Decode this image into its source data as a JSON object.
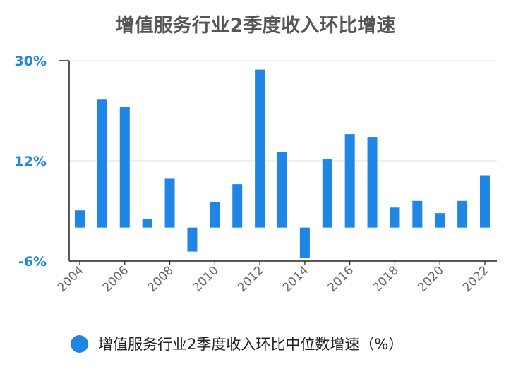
{
  "chart_data": {
    "type": "bar",
    "title": "增值服务行业2季度收入环比增速",
    "xlabel": "",
    "ylabel": "",
    "ylim": [
      -6,
      30
    ],
    "y_ticks": [
      {
        "label": "30%",
        "value": 30
      },
      {
        "label": "12%",
        "value": 12
      },
      {
        "label": "-6%",
        "value": -6
      }
    ],
    "categories": [
      "2004",
      "2005",
      "2006",
      "2007",
      "2008",
      "2009",
      "2010",
      "2011",
      "2012",
      "2013",
      "2014",
      "2015",
      "2016",
      "2017",
      "2018",
      "2019",
      "2020",
      "2021",
      "2022"
    ],
    "x_tick_labels": [
      "2004",
      "2006",
      "2008",
      "2010",
      "2012",
      "2014",
      "2016",
      "2018",
      "2020",
      "2022"
    ],
    "grid": true,
    "legend_position": "bottom",
    "series": [
      {
        "name": "增值服务行业2季度收入环比中位数增速（%）",
        "color": "#1f86e6",
        "values": [
          3.1,
          23.0,
          21.7,
          1.5,
          8.9,
          -4.3,
          4.6,
          7.8,
          28.4,
          13.6,
          -5.4,
          12.3,
          16.8,
          16.3,
          3.6,
          4.8,
          2.6,
          4.8,
          9.4
        ]
      }
    ]
  }
}
